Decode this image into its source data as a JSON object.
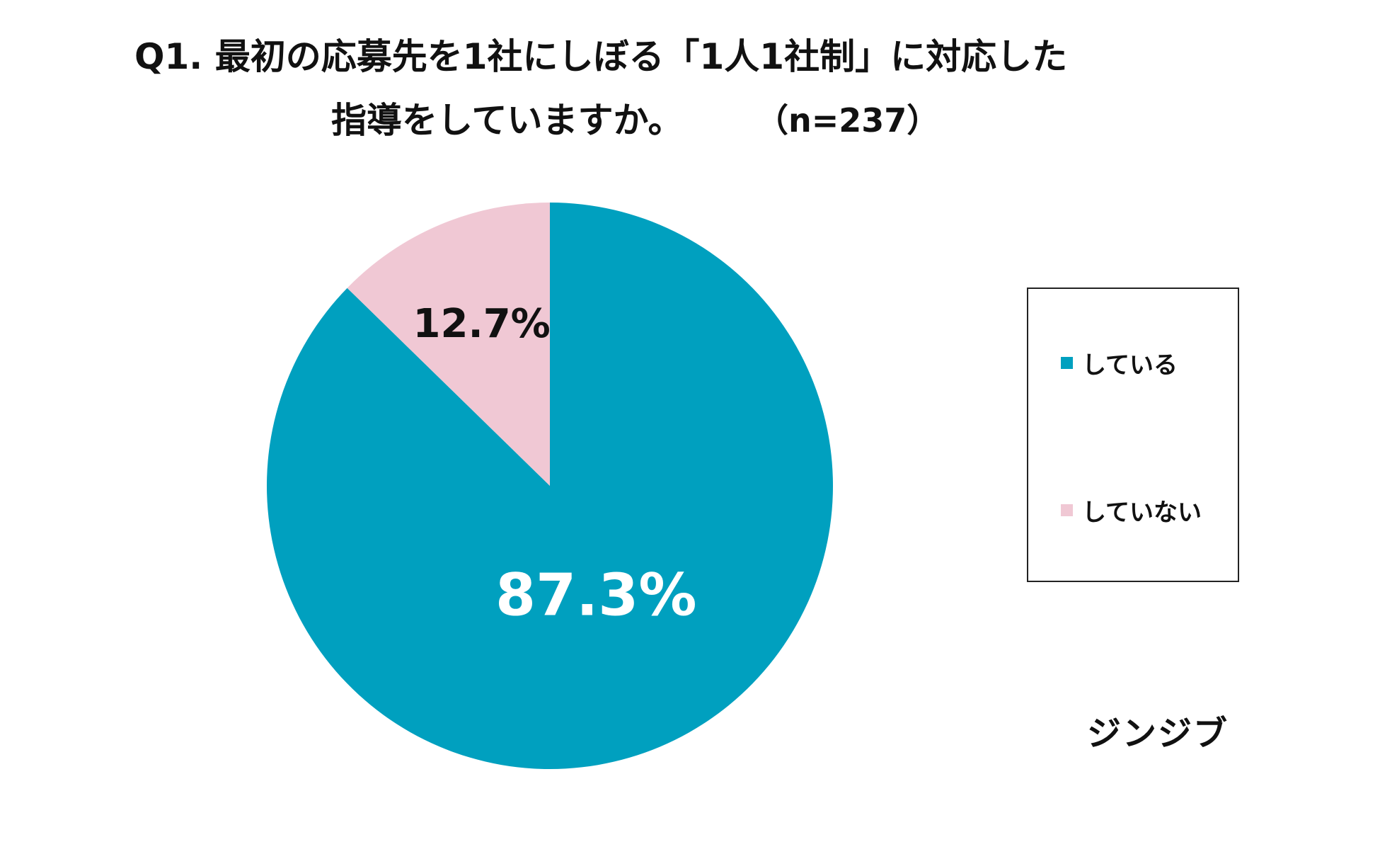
{
  "title": {
    "line1": "Q1.  最初の応募先を1社にしぼる「1人1社制」に対応した",
    "line2": "指導をしていますか。",
    "sample": "（n=237）"
  },
  "brand": "ジンジブ",
  "chart_data": {
    "type": "pie",
    "categories": [
      "している",
      "していない"
    ],
    "values": [
      87.3,
      12.7
    ],
    "value_labels": [
      "87.3%",
      "12.7%"
    ],
    "colors": [
      "#00a0bf",
      "#f0c8d4"
    ],
    "label_colors": [
      "#ffffff",
      "#111111"
    ],
    "legend_position": "right"
  }
}
